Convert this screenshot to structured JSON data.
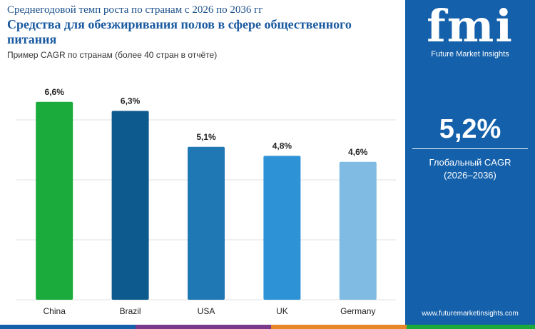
{
  "chart_data": {
    "type": "bar",
    "supertitle": "Среднегодовой темп роста по странам с 2026 по 2036 гг",
    "title": "Средства для обезжиривания полов в сфере общественного питания",
    "subtitle": "Пример CAGR по странам (более 40 стран в отчёте)",
    "categories": [
      "China",
      "Brazil",
      "USA",
      "UK",
      "Germany"
    ],
    "values": [
      6.6,
      6.3,
      5.1,
      4.8,
      4.6
    ],
    "value_labels": [
      "6,6%",
      "6,3%",
      "5,1%",
      "4,8%",
      "4,6%"
    ],
    "colors": [
      "#1aab3c",
      "#0d5a8e",
      "#1f78b4",
      "#2e93d6",
      "#7fbbe3"
    ],
    "ylim": [
      0,
      7.5
    ],
    "yticks": [
      0,
      2,
      4,
      6
    ],
    "grid": true
  },
  "sidebar": {
    "logo": "fmi",
    "brand": "Future Market Insights",
    "global_value": "5,2%",
    "global_label": "Глобальный CAGR",
    "period": "(2026–2036)",
    "website": "www.futuremarketinsights.com"
  }
}
